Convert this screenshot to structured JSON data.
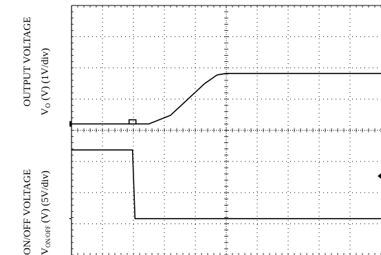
{
  "chart_data": {
    "type": "line",
    "title": "",
    "grid": true,
    "divisions": {
      "x": 10,
      "y": 8
    },
    "ylabels": {
      "output": {
        "line1": "OUTPUT VOLTAGE",
        "symbol": "V",
        "subscript": "O",
        "units": " (V) (1V/div)"
      },
      "onoff": {
        "line1": "ON/OFF VOLTAGE",
        "symbol": "V",
        "subscript": "ON/OFF",
        "units": " (V) (5V/div)"
      }
    },
    "series": [
      {
        "color": "#000000",
        "x": [
          0,
          2.5,
          3.2,
          4.3,
          4.7,
          5.0,
          10
        ],
        "y": [
          0,
          0,
          0.55,
          2.55,
          3.1,
          3.2,
          3.2
        ]
      },
      {
        "color": "#000000",
        "x": [
          0,
          1.97,
          2.05,
          10
        ],
        "y": [
          -1.65,
          -1.65,
          -6.0,
          -6.0
        ]
      }
    ],
    "xlim": [
      0,
      10
    ],
    "ylim": [
      -8.3,
      7.5
    ]
  },
  "colors": {
    "trace": "#000000",
    "grid": "#000000",
    "background": "#ffffff"
  }
}
